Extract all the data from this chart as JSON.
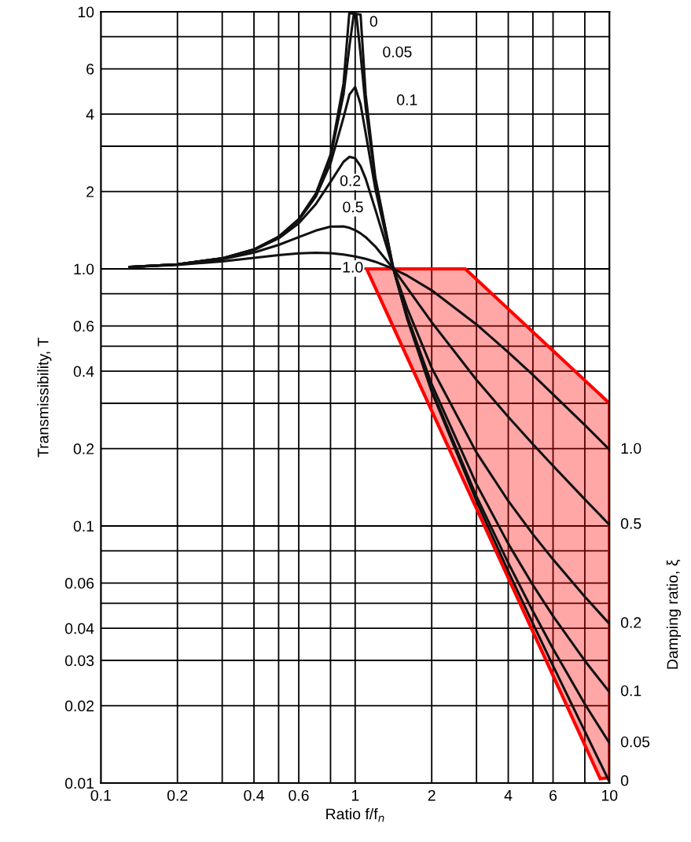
{
  "chart_data": {
    "type": "line",
    "xlabel": "Ratio f/f$_{n}$",
    "ylabel": "Transmissibility, T",
    "y2label": "Damping ratio, ξ",
    "log": "xy",
    "grid": true,
    "legend": false,
    "marker": "none",
    "line_style": "solid",
    "xlim": [
      0.1,
      10
    ],
    "ylim": [
      0.01,
      10
    ],
    "xticks": [
      0.1,
      0.2,
      {
        "value": 0.3,
        "label": null
      },
      0.4,
      {
        "value": 0.5,
        "label": null
      },
      0.6,
      {
        "value": 0.8,
        "label": null
      },
      1,
      2,
      {
        "value": 3,
        "label": null
      },
      4,
      {
        "value": 5,
        "label": null
      },
      6,
      {
        "value": 8,
        "label": null
      },
      10
    ],
    "yticks": [
      0.01,
      0.02,
      0.03,
      0.04,
      {
        "value": 0.05,
        "label": null
      },
      0.06,
      {
        "value": 0.08,
        "label": null
      },
      0.1,
      0.2,
      {
        "value": 0.3,
        "label": null
      },
      0.4,
      {
        "value": 0.5,
        "label": null
      },
      0.6,
      {
        "value": 0.8,
        "label": null
      },
      {
        "value": 1,
        "label": "1.0"
      },
      2,
      {
        "value": 3,
        "label": null
      },
      4,
      6,
      {
        "value": 8,
        "label": null
      },
      10
    ],
    "series": [
      {
        "name": "0",
        "color": "#111111",
        "x": [
          0.13,
          0.2,
          0.3,
          0.4,
          0.5,
          0.6,
          0.7,
          0.8,
          0.9,
          0.948,
          1.05,
          1.1,
          1.2,
          1.414,
          1.6,
          2,
          3,
          4,
          5,
          6,
          8,
          10
        ],
        "values": [
          1.017,
          1.042,
          1.099,
          1.19,
          1.333,
          1.563,
          1.96,
          2.78,
          5.26,
          9.87,
          9.76,
          4.76,
          2.27,
          1.0,
          0.641,
          0.333,
          0.125,
          0.0667,
          0.0417,
          0.0286,
          0.0159,
          0.0101
        ]
      },
      {
        "name": "0.05",
        "color": "#111111",
        "x": [
          0.13,
          0.2,
          0.3,
          0.4,
          0.5,
          0.6,
          0.7,
          0.8,
          0.9,
          0.95,
          0.99,
          1.01,
          1.05,
          1.1,
          1.2,
          1.414,
          1.6,
          2,
          3,
          4,
          5,
          6,
          8,
          10
        ],
        "values": [
          1.017,
          1.042,
          1.099,
          1.19,
          1.332,
          1.558,
          1.947,
          2.72,
          4.78,
          7.38,
          9.95,
          9.76,
          6.85,
          4.24,
          2.21,
          1.0,
          0.646,
          0.339,
          0.1304,
          0.0718,
          0.0466,
          0.0333,
          0.0203,
          0.0143
        ]
      },
      {
        "name": "0.1",
        "color": "#111111",
        "x": [
          0.13,
          0.2,
          0.3,
          0.4,
          0.5,
          0.6,
          0.7,
          0.8,
          0.9,
          0.95,
          1.0,
          1.05,
          1.1,
          1.2,
          1.414,
          1.6,
          2,
          3,
          4,
          5,
          6,
          8,
          10
        ],
        "values": [
          1.017,
          1.042,
          1.098,
          1.189,
          1.328,
          1.547,
          1.909,
          2.571,
          3.88,
          4.77,
          5.1,
          4.37,
          3.37,
          2.052,
          1.0,
          0.659,
          0.356,
          0.1454,
          0.0853,
          0.0589,
          0.0446,
          0.0299,
          0.0226
        ]
      },
      {
        "name": "0.2",
        "color": "#111111",
        "x": [
          0.13,
          0.2,
          0.3,
          0.4,
          0.5,
          0.6,
          0.7,
          0.8,
          0.9,
          0.95,
          1.0,
          1.05,
          1.1,
          1.2,
          1.414,
          1.6,
          2,
          3,
          4,
          5,
          6,
          8,
          10
        ],
        "values": [
          1.017,
          1.041,
          1.097,
          1.184,
          1.314,
          1.505,
          1.785,
          2.18,
          2.611,
          2.727,
          2.693,
          2.509,
          2.241,
          1.703,
          1.0,
          0.704,
          0.412,
          0.193,
          0.1251,
          0.0928,
          0.0741,
          0.0531,
          0.0416
        ]
      },
      {
        "name": "0.5",
        "color": "#111111",
        "x": [
          0.13,
          0.2,
          0.3,
          0.4,
          0.5,
          0.6,
          0.7,
          0.8,
          0.9,
          0.95,
          1.0,
          1.05,
          1.1,
          1.2,
          1.414,
          1.6,
          2,
          3,
          4,
          5,
          6,
          8,
          10
        ],
        "values": [
          1.016,
          1.04,
          1.09,
          1.158,
          1.24,
          1.329,
          1.409,
          1.46,
          1.463,
          1.444,
          1.414,
          1.374,
          1.328,
          1.222,
          1.0,
          0.844,
          0.62,
          0.37,
          0.2656,
          0.208,
          0.1713,
          0.127,
          0.101
        ]
      },
      {
        "name": "1.0",
        "color": "#111111",
        "x": [
          0.13,
          0.2,
          0.3,
          0.4,
          0.5,
          0.6,
          0.7,
          0.8,
          0.9,
          1.0,
          1.1,
          1.2,
          1.414,
          1.6,
          2,
          3,
          4,
          5,
          6,
          8,
          10
        ],
        "values": [
          1.016,
          1.036,
          1.07,
          1.104,
          1.131,
          1.149,
          1.155,
          1.151,
          1.138,
          1.118,
          1.094,
          1.066,
          1.0,
          0.942,
          0.825,
          0.608,
          0.474,
          0.387,
          0.325,
          0.247,
          0.198
        ]
      },
      {
        "type": "area",
        "color": "#ff0000",
        "x": [
          1.11,
          2.71,
          10,
          10,
          9.2
        ],
        "values": [
          1.0,
          1.0,
          0.3,
          0.0105,
          0.0104
        ]
      }
    ],
    "annotations": [
      "0",
      "0.05",
      "0.1",
      "0.2",
      "0.5",
      "1.0"
    ]
  }
}
